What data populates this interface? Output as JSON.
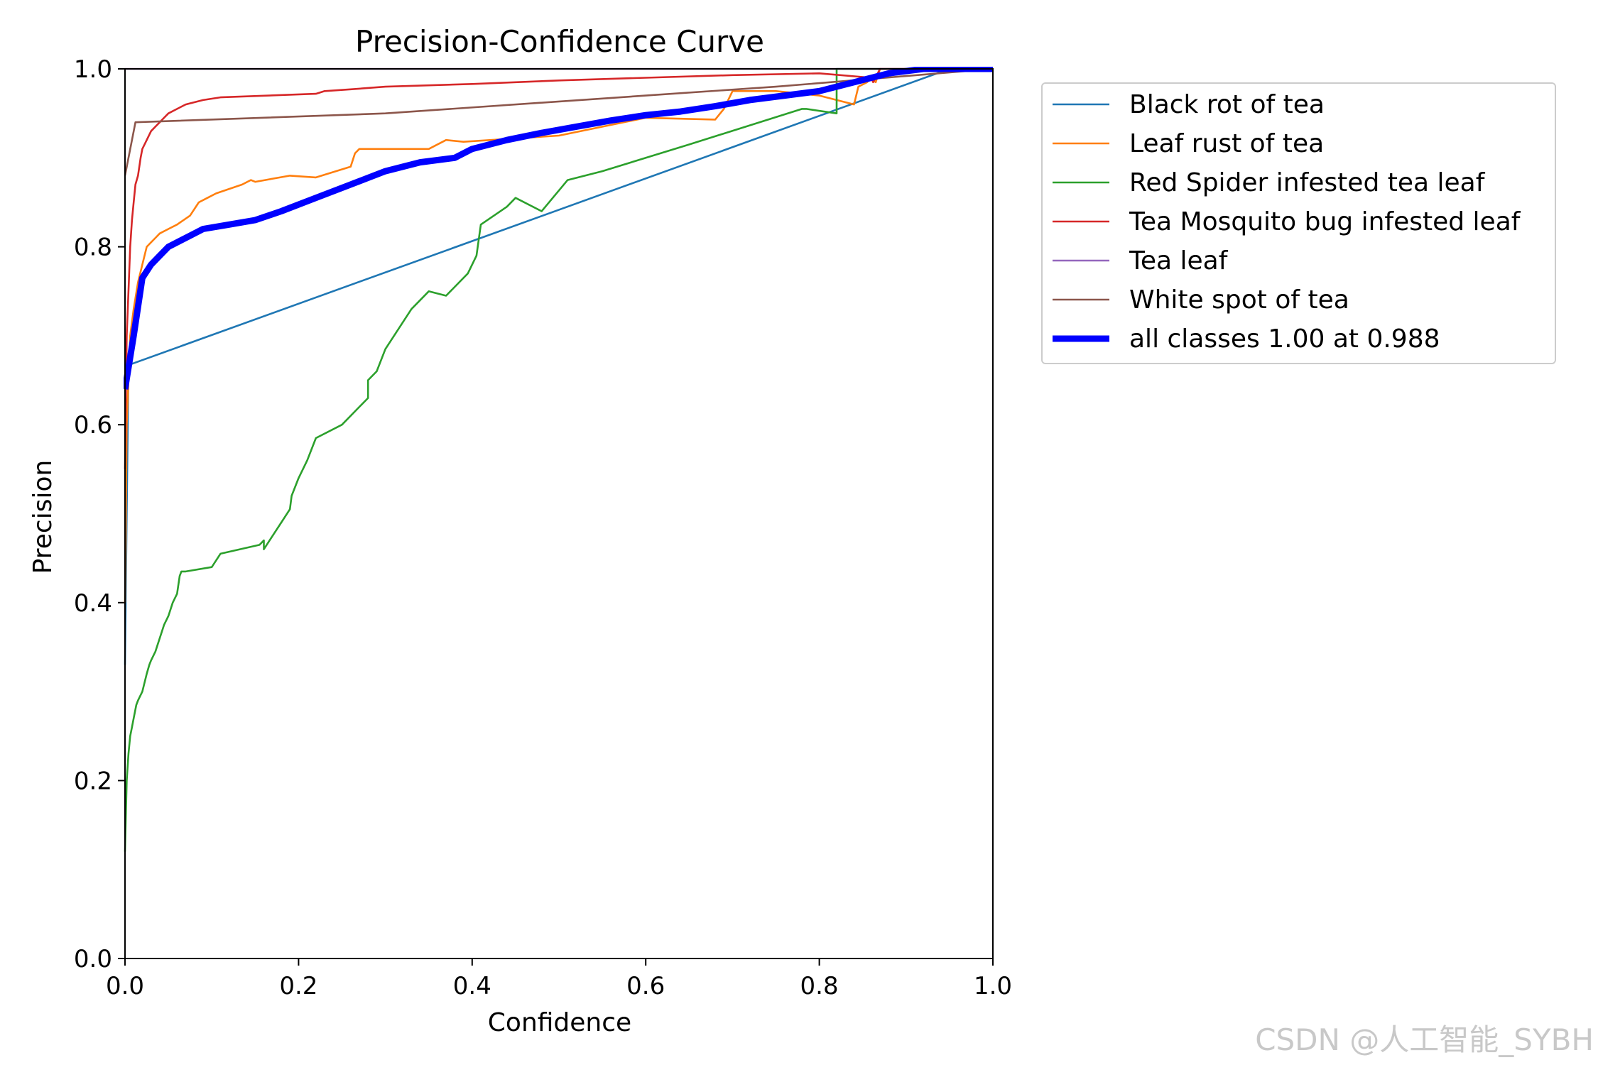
{
  "watermark": "CSDN @人工智能_SYBH",
  "chart_data": {
    "type": "line",
    "title": "Precision-Confidence Curve",
    "xlabel": "Confidence",
    "ylabel": "Precision",
    "xlim": [
      0.0,
      1.0
    ],
    "ylim": [
      0.0,
      1.0
    ],
    "xticks": [
      "0.0",
      "0.2",
      "0.4",
      "0.6",
      "0.8",
      "1.0"
    ],
    "yticks": [
      "0.0",
      "0.2",
      "0.4",
      "0.6",
      "0.8",
      "1.0"
    ],
    "grid": false,
    "legend_position": "outside-top-right",
    "series": [
      {
        "name": "Black rot of tea",
        "color": "#1f77b4",
        "x": [
          0.0,
          0.002,
          0.004,
          0.95,
          1.0
        ],
        "y": [
          0.33,
          0.5,
          0.667,
          1.0,
          1.0
        ]
      },
      {
        "name": "Leaf rust of tea",
        "color": "#ff7f0e",
        "x": [
          0.0,
          0.002,
          0.004,
          0.006,
          0.01,
          0.015,
          0.02,
          0.025,
          0.03,
          0.035,
          0.04,
          0.05,
          0.06,
          0.075,
          0.085,
          0.095,
          0.105,
          0.135,
          0.145,
          0.15,
          0.19,
          0.22,
          0.26,
          0.265,
          0.27,
          0.35,
          0.37,
          0.39,
          0.5,
          0.6,
          0.68,
          0.69,
          0.7,
          0.71,
          0.75,
          0.8,
          0.84,
          0.845,
          0.855,
          0.86,
          0.865,
          0.87,
          1.0
        ],
        "y": [
          0.4,
          0.6,
          0.65,
          0.7,
          0.73,
          0.76,
          0.78,
          0.8,
          0.805,
          0.81,
          0.815,
          0.82,
          0.825,
          0.835,
          0.85,
          0.855,
          0.86,
          0.87,
          0.875,
          0.873,
          0.88,
          0.878,
          0.89,
          0.905,
          0.91,
          0.91,
          0.92,
          0.918,
          0.925,
          0.945,
          0.943,
          0.955,
          0.975,
          0.975,
          0.975,
          0.97,
          0.96,
          0.98,
          0.985,
          0.99,
          0.985,
          1.0,
          1.0
        ]
      },
      {
        "name": "Red Spider infested tea leaf",
        "color": "#2ca02c",
        "x": [
          0.0,
          0.002,
          0.004,
          0.006,
          0.008,
          0.01,
          0.013,
          0.015,
          0.02,
          0.025,
          0.028,
          0.03,
          0.035,
          0.04,
          0.045,
          0.05,
          0.055,
          0.06,
          0.063,
          0.065,
          0.07,
          0.1,
          0.11,
          0.155,
          0.16,
          0.16,
          0.17,
          0.18,
          0.19,
          0.192,
          0.2,
          0.21,
          0.22,
          0.25,
          0.27,
          0.28,
          0.28,
          0.29,
          0.3,
          0.31,
          0.33,
          0.35,
          0.37,
          0.395,
          0.405,
          0.41,
          0.44,
          0.45,
          0.48,
          0.51,
          0.55,
          0.65,
          0.78,
          0.785,
          0.82,
          0.82,
          0.86,
          1.0
        ],
        "y": [
          0.12,
          0.2,
          0.23,
          0.25,
          0.26,
          0.27,
          0.285,
          0.29,
          0.3,
          0.32,
          0.33,
          0.335,
          0.345,
          0.36,
          0.375,
          0.385,
          0.4,
          0.41,
          0.43,
          0.435,
          0.435,
          0.44,
          0.455,
          0.465,
          0.47,
          0.46,
          0.475,
          0.49,
          0.505,
          0.52,
          0.54,
          0.56,
          0.585,
          0.6,
          0.62,
          0.63,
          0.65,
          0.66,
          0.685,
          0.7,
          0.73,
          0.75,
          0.745,
          0.77,
          0.79,
          0.825,
          0.845,
          0.855,
          0.84,
          0.875,
          0.885,
          0.915,
          0.955,
          0.955,
          0.95,
          1.0,
          1.0,
          1.0
        ]
      },
      {
        "name": "Tea Mosquito bug infested leaf",
        "color": "#d62728",
        "x": [
          0.0,
          0.002,
          0.004,
          0.006,
          0.008,
          0.01,
          0.012,
          0.015,
          0.018,
          0.02,
          0.025,
          0.03,
          0.035,
          0.04,
          0.045,
          0.05,
          0.06,
          0.07,
          0.09,
          0.11,
          0.22,
          0.23,
          0.26,
          0.3,
          0.4,
          0.5,
          0.6,
          0.7,
          0.8,
          0.86,
          0.862,
          0.87,
          1.0
        ],
        "y": [
          0.55,
          0.7,
          0.75,
          0.8,
          0.83,
          0.85,
          0.87,
          0.88,
          0.9,
          0.91,
          0.92,
          0.93,
          0.935,
          0.94,
          0.945,
          0.95,
          0.955,
          0.96,
          0.965,
          0.968,
          0.972,
          0.975,
          0.977,
          0.98,
          0.983,
          0.987,
          0.99,
          0.993,
          0.995,
          0.99,
          0.985,
          1.0,
          1.0
        ]
      },
      {
        "name": "Tea leaf",
        "color": "#9467bd",
        "x": [
          0.0,
          1.0
        ],
        "y": [
          1.0,
          1.0
        ]
      },
      {
        "name": "White spot of tea",
        "color": "#8c564b",
        "x": [
          0.0,
          0.012,
          0.3,
          0.6,
          0.75,
          1.0
        ],
        "y": [
          0.88,
          0.94,
          0.95,
          0.97,
          0.98,
          1.0
        ]
      },
      {
        "name": "all classes 1.00 at 0.988",
        "color": "#0000ff",
        "thick": true,
        "x": [
          0.0,
          0.01,
          0.02,
          0.03,
          0.04,
          0.05,
          0.07,
          0.09,
          0.12,
          0.15,
          0.18,
          0.22,
          0.26,
          0.3,
          0.34,
          0.38,
          0.4,
          0.44,
          0.48,
          0.52,
          0.56,
          0.6,
          0.64,
          0.68,
          0.72,
          0.76,
          0.8,
          0.84,
          0.88,
          0.92,
          0.96,
          0.988,
          1.0
        ],
        "y": [
          0.64,
          0.7,
          0.765,
          0.78,
          0.79,
          0.8,
          0.81,
          0.82,
          0.825,
          0.83,
          0.84,
          0.855,
          0.87,
          0.885,
          0.895,
          0.9,
          0.91,
          0.92,
          0.928,
          0.935,
          0.942,
          0.948,
          0.952,
          0.958,
          0.965,
          0.97,
          0.975,
          0.985,
          0.995,
          1.0,
          1.0,
          1.0,
          1.0
        ]
      }
    ]
  }
}
